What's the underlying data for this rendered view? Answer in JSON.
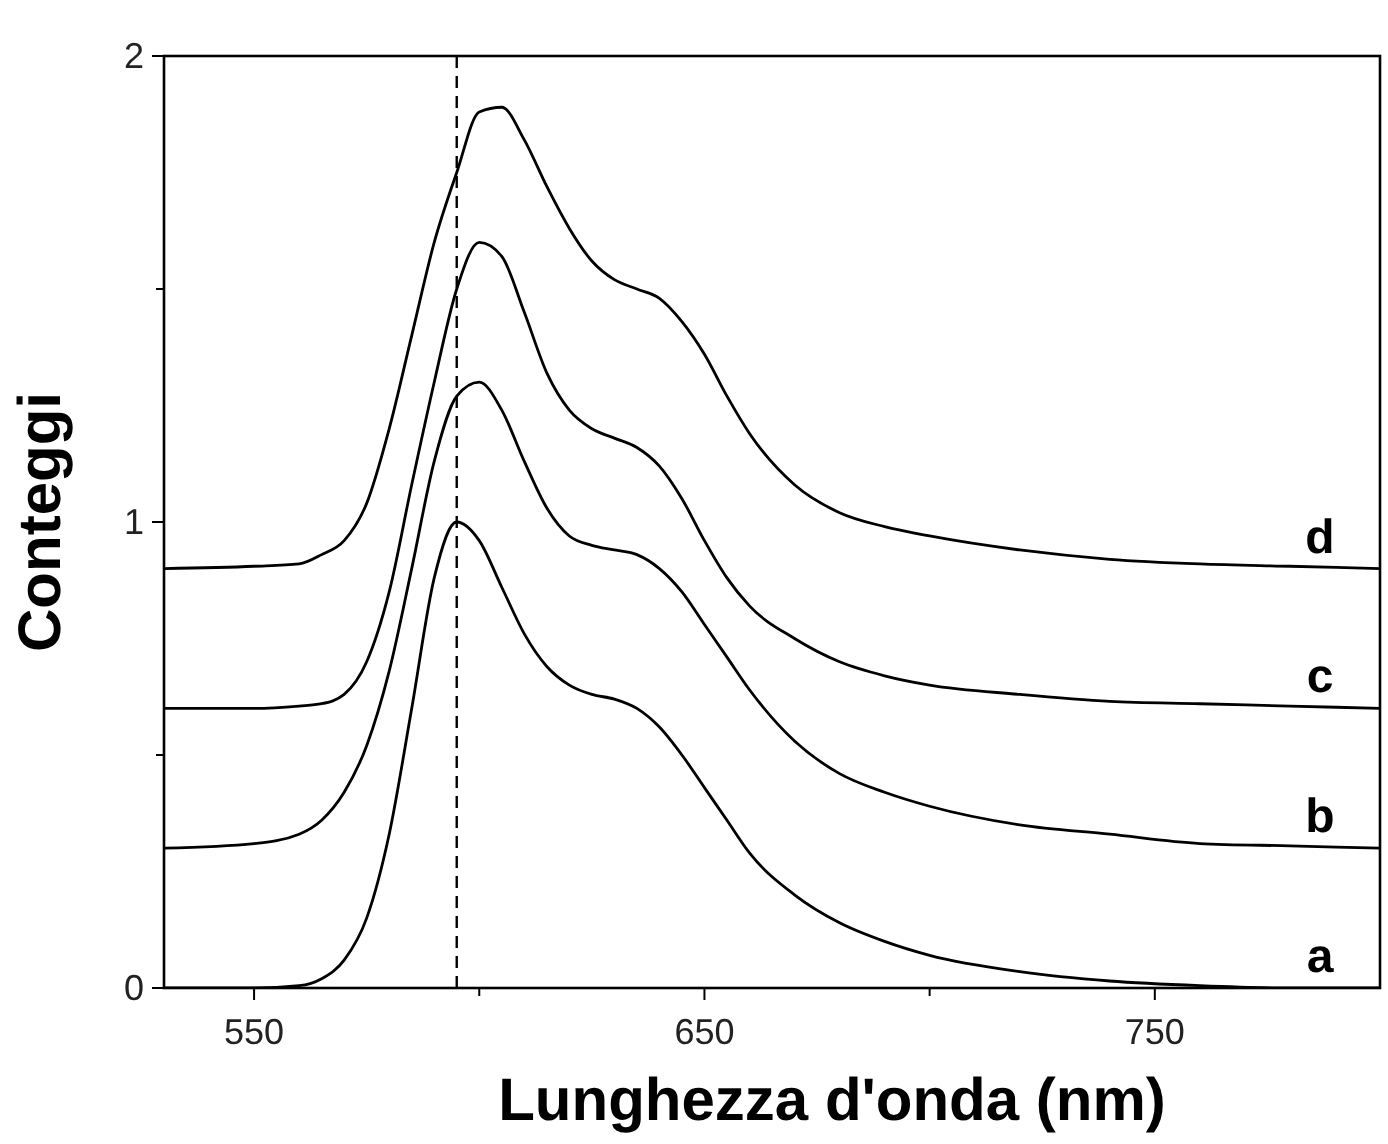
{
  "chart_data": {
    "type": "line",
    "xlabel": "Lunghezza d'onda (nm)",
    "ylabel": "Conteggi",
    "x": [
      530,
      550,
      560,
      565,
      570,
      575,
      580,
      585,
      590,
      595,
      600,
      605,
      610,
      615,
      620,
      625,
      630,
      635,
      640,
      645,
      650,
      655,
      660,
      670,
      680,
      690,
      700,
      720,
      740,
      760,
      780,
      800
    ],
    "series": [
      {
        "name": "a",
        "color": "#000000",
        "values": [
          0,
          0,
          0.005,
          0.02,
          0.06,
          0.15,
          0.33,
          0.6,
          0.88,
          1.0,
          0.96,
          0.86,
          0.76,
          0.69,
          0.65,
          0.63,
          0.62,
          0.6,
          0.56,
          0.5,
          0.43,
          0.36,
          0.29,
          0.2,
          0.14,
          0.1,
          0.07,
          0.035,
          0.015,
          0.005,
          0,
          0
        ]
      },
      {
        "name": "b",
        "color": "#000000",
        "values": [
          0.3,
          0.31,
          0.33,
          0.36,
          0.42,
          0.52,
          0.68,
          0.9,
          1.13,
          1.27,
          1.3,
          1.24,
          1.13,
          1.03,
          0.97,
          0.95,
          0.94,
          0.93,
          0.9,
          0.85,
          0.78,
          0.71,
          0.64,
          0.53,
          0.46,
          0.42,
          0.39,
          0.35,
          0.33,
          0.31,
          0.305,
          0.3
        ]
      },
      {
        "name": "c",
        "color": "#000000",
        "values": [
          0.6,
          0.6,
          0.605,
          0.61,
          0.63,
          0.7,
          0.85,
          1.08,
          1.3,
          1.5,
          1.6,
          1.57,
          1.45,
          1.32,
          1.24,
          1.2,
          1.18,
          1.16,
          1.12,
          1.05,
          0.96,
          0.88,
          0.82,
          0.75,
          0.7,
          0.67,
          0.65,
          0.63,
          0.615,
          0.61,
          0.605,
          0.6
        ]
      },
      {
        "name": "d",
        "color": "#000000",
        "values": [
          0.9,
          0.905,
          0.91,
          0.93,
          0.96,
          1.04,
          1.2,
          1.4,
          1.6,
          1.75,
          1.88,
          1.89,
          1.82,
          1.72,
          1.63,
          1.56,
          1.52,
          1.5,
          1.48,
          1.43,
          1.36,
          1.27,
          1.19,
          1.08,
          1.02,
          0.99,
          0.97,
          0.94,
          0.92,
          0.91,
          0.905,
          0.9
        ]
      }
    ],
    "xlim": [
      530,
      800
    ],
    "ylim": [
      0,
      2
    ],
    "xticks": [
      550,
      {
        "value": 600,
        "label": null
      },
      650,
      {
        "value": 700,
        "label": null
      },
      750
    ],
    "yticks": [
      0,
      {
        "value": 0.5,
        "label": null
      },
      1,
      {
        "value": 1.5,
        "label": null
      },
      2
    ],
    "ref_lines": [
      {
        "axis": "x",
        "value": 595,
        "line_style": "dashed",
        "color": "#000000"
      }
    ],
    "legend": false,
    "grid": false,
    "marker": "none",
    "line_style": "solid"
  }
}
